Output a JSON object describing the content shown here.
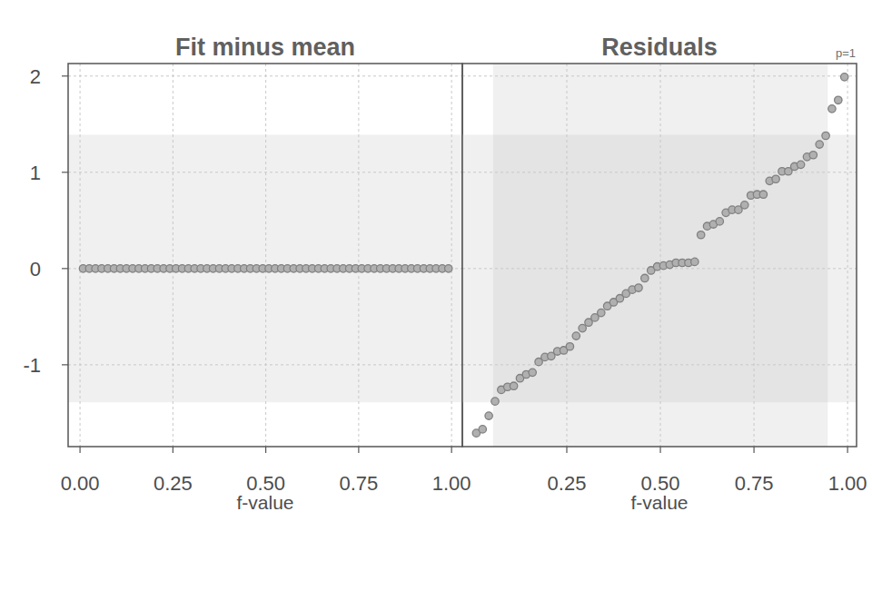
{
  "chart_data": [
    {
      "type": "scatter",
      "title": "Fit minus mean",
      "x_label": "f-value",
      "color": "#b0b0b0",
      "marker": "circle",
      "grid": true,
      "x": [
        0.0083,
        0.025,
        0.0417,
        0.0583,
        0.075,
        0.0917,
        0.1083,
        0.125,
        0.1417,
        0.1583,
        0.175,
        0.1917,
        0.2083,
        0.225,
        0.2417,
        0.2583,
        0.275,
        0.2917,
        0.3083,
        0.325,
        0.3417,
        0.3583,
        0.375,
        0.3917,
        0.4083,
        0.425,
        0.4417,
        0.4583,
        0.475,
        0.4917,
        0.5083,
        0.525,
        0.5417,
        0.5583,
        0.575,
        0.5917,
        0.6083,
        0.625,
        0.6417,
        0.6583,
        0.675,
        0.6917,
        0.7083,
        0.725,
        0.7417,
        0.7583,
        0.775,
        0.7917,
        0.8083,
        0.825,
        0.8417,
        0.8583,
        0.875,
        0.8917,
        0.9083,
        0.925,
        0.9417,
        0.9583,
        0.975,
        0.9917
      ],
      "values": [
        0,
        0,
        0,
        0,
        0,
        0,
        0,
        0,
        0,
        0,
        0,
        0,
        0,
        0,
        0,
        0,
        0,
        0,
        0,
        0,
        0,
        0,
        0,
        0,
        0,
        0,
        0,
        0,
        0,
        0,
        0,
        0,
        0,
        0,
        0,
        0,
        0,
        0,
        0,
        0,
        0,
        0,
        0,
        0,
        0,
        0,
        0,
        0,
        0,
        0,
        0,
        0,
        0,
        0,
        0,
        0,
        0,
        0,
        0,
        0
      ],
      "band_y": [
        -1.39,
        1.39
      ],
      "xlim": [
        -0.032,
        1.029
      ],
      "ylim": [
        -1.85,
        2.13
      ],
      "xticks": [
        {
          "value": 0,
          "label": "0.00"
        },
        {
          "value": 0.25,
          "label": "0.25"
        },
        {
          "value": 0.5,
          "label": "0.50"
        },
        {
          "value": 0.75,
          "label": "0.75"
        },
        {
          "value": 1,
          "label": "1.00"
        }
      ],
      "yticks": [
        -1,
        0,
        1,
        2
      ]
    },
    {
      "type": "scatter",
      "title": "Residuals",
      "x_label": "f-value",
      "annotation": "p=1",
      "color": "#b0b0b0",
      "marker": "circle",
      "grid": true,
      "tick_labels": "x",
      "x": [
        0.0083,
        0.025,
        0.0417,
        0.0583,
        0.075,
        0.0917,
        0.1083,
        0.125,
        0.1417,
        0.1583,
        0.175,
        0.1917,
        0.2083,
        0.225,
        0.2417,
        0.2583,
        0.275,
        0.2917,
        0.3083,
        0.325,
        0.3417,
        0.3583,
        0.375,
        0.3917,
        0.4083,
        0.425,
        0.4417,
        0.4583,
        0.475,
        0.4917,
        0.5083,
        0.525,
        0.5417,
        0.5583,
        0.575,
        0.5917,
        0.6083,
        0.625,
        0.6417,
        0.6583,
        0.675,
        0.6917,
        0.7083,
        0.725,
        0.7417,
        0.7583,
        0.775,
        0.7917,
        0.8083,
        0.825,
        0.8417,
        0.8583,
        0.875,
        0.8917,
        0.9083,
        0.925,
        0.9417,
        0.9583,
        0.975,
        0.9917
      ],
      "values": [
        -1.71,
        -1.67,
        -1.53,
        -1.38,
        -1.26,
        -1.23,
        -1.22,
        -1.14,
        -1.1,
        -1.08,
        -0.97,
        -0.92,
        -0.91,
        -0.86,
        -0.85,
        -0.81,
        -0.7,
        -0.62,
        -0.56,
        -0.51,
        -0.46,
        -0.39,
        -0.35,
        -0.31,
        -0.26,
        -0.22,
        -0.2,
        -0.1,
        -0.02,
        0.02,
        0.03,
        0.04,
        0.06,
        0.06,
        0.06,
        0.07,
        0.35,
        0.44,
        0.46,
        0.49,
        0.58,
        0.61,
        0.61,
        0.66,
        0.76,
        0.77,
        0.77,
        0.91,
        0.93,
        1.01,
        1.01,
        1.06,
        1.08,
        1.16,
        1.18,
        1.29,
        1.38,
        1.66,
        1.75,
        1.99
      ],
      "band_y": [
        -1.39,
        1.39
      ],
      "band_x": [
        0.053,
        0.947
      ],
      "xlim": [
        -0.029,
        1.024
      ],
      "ylim": [
        -1.85,
        2.13
      ],
      "xticks": [
        {
          "value": 0.25,
          "label": "0.25"
        },
        {
          "value": 0.5,
          "label": "0.50"
        },
        {
          "value": 0.75,
          "label": "0.75"
        },
        {
          "value": 1,
          "label": "1.00"
        }
      ],
      "yticks": [
        -1,
        0,
        1,
        2
      ]
    }
  ]
}
